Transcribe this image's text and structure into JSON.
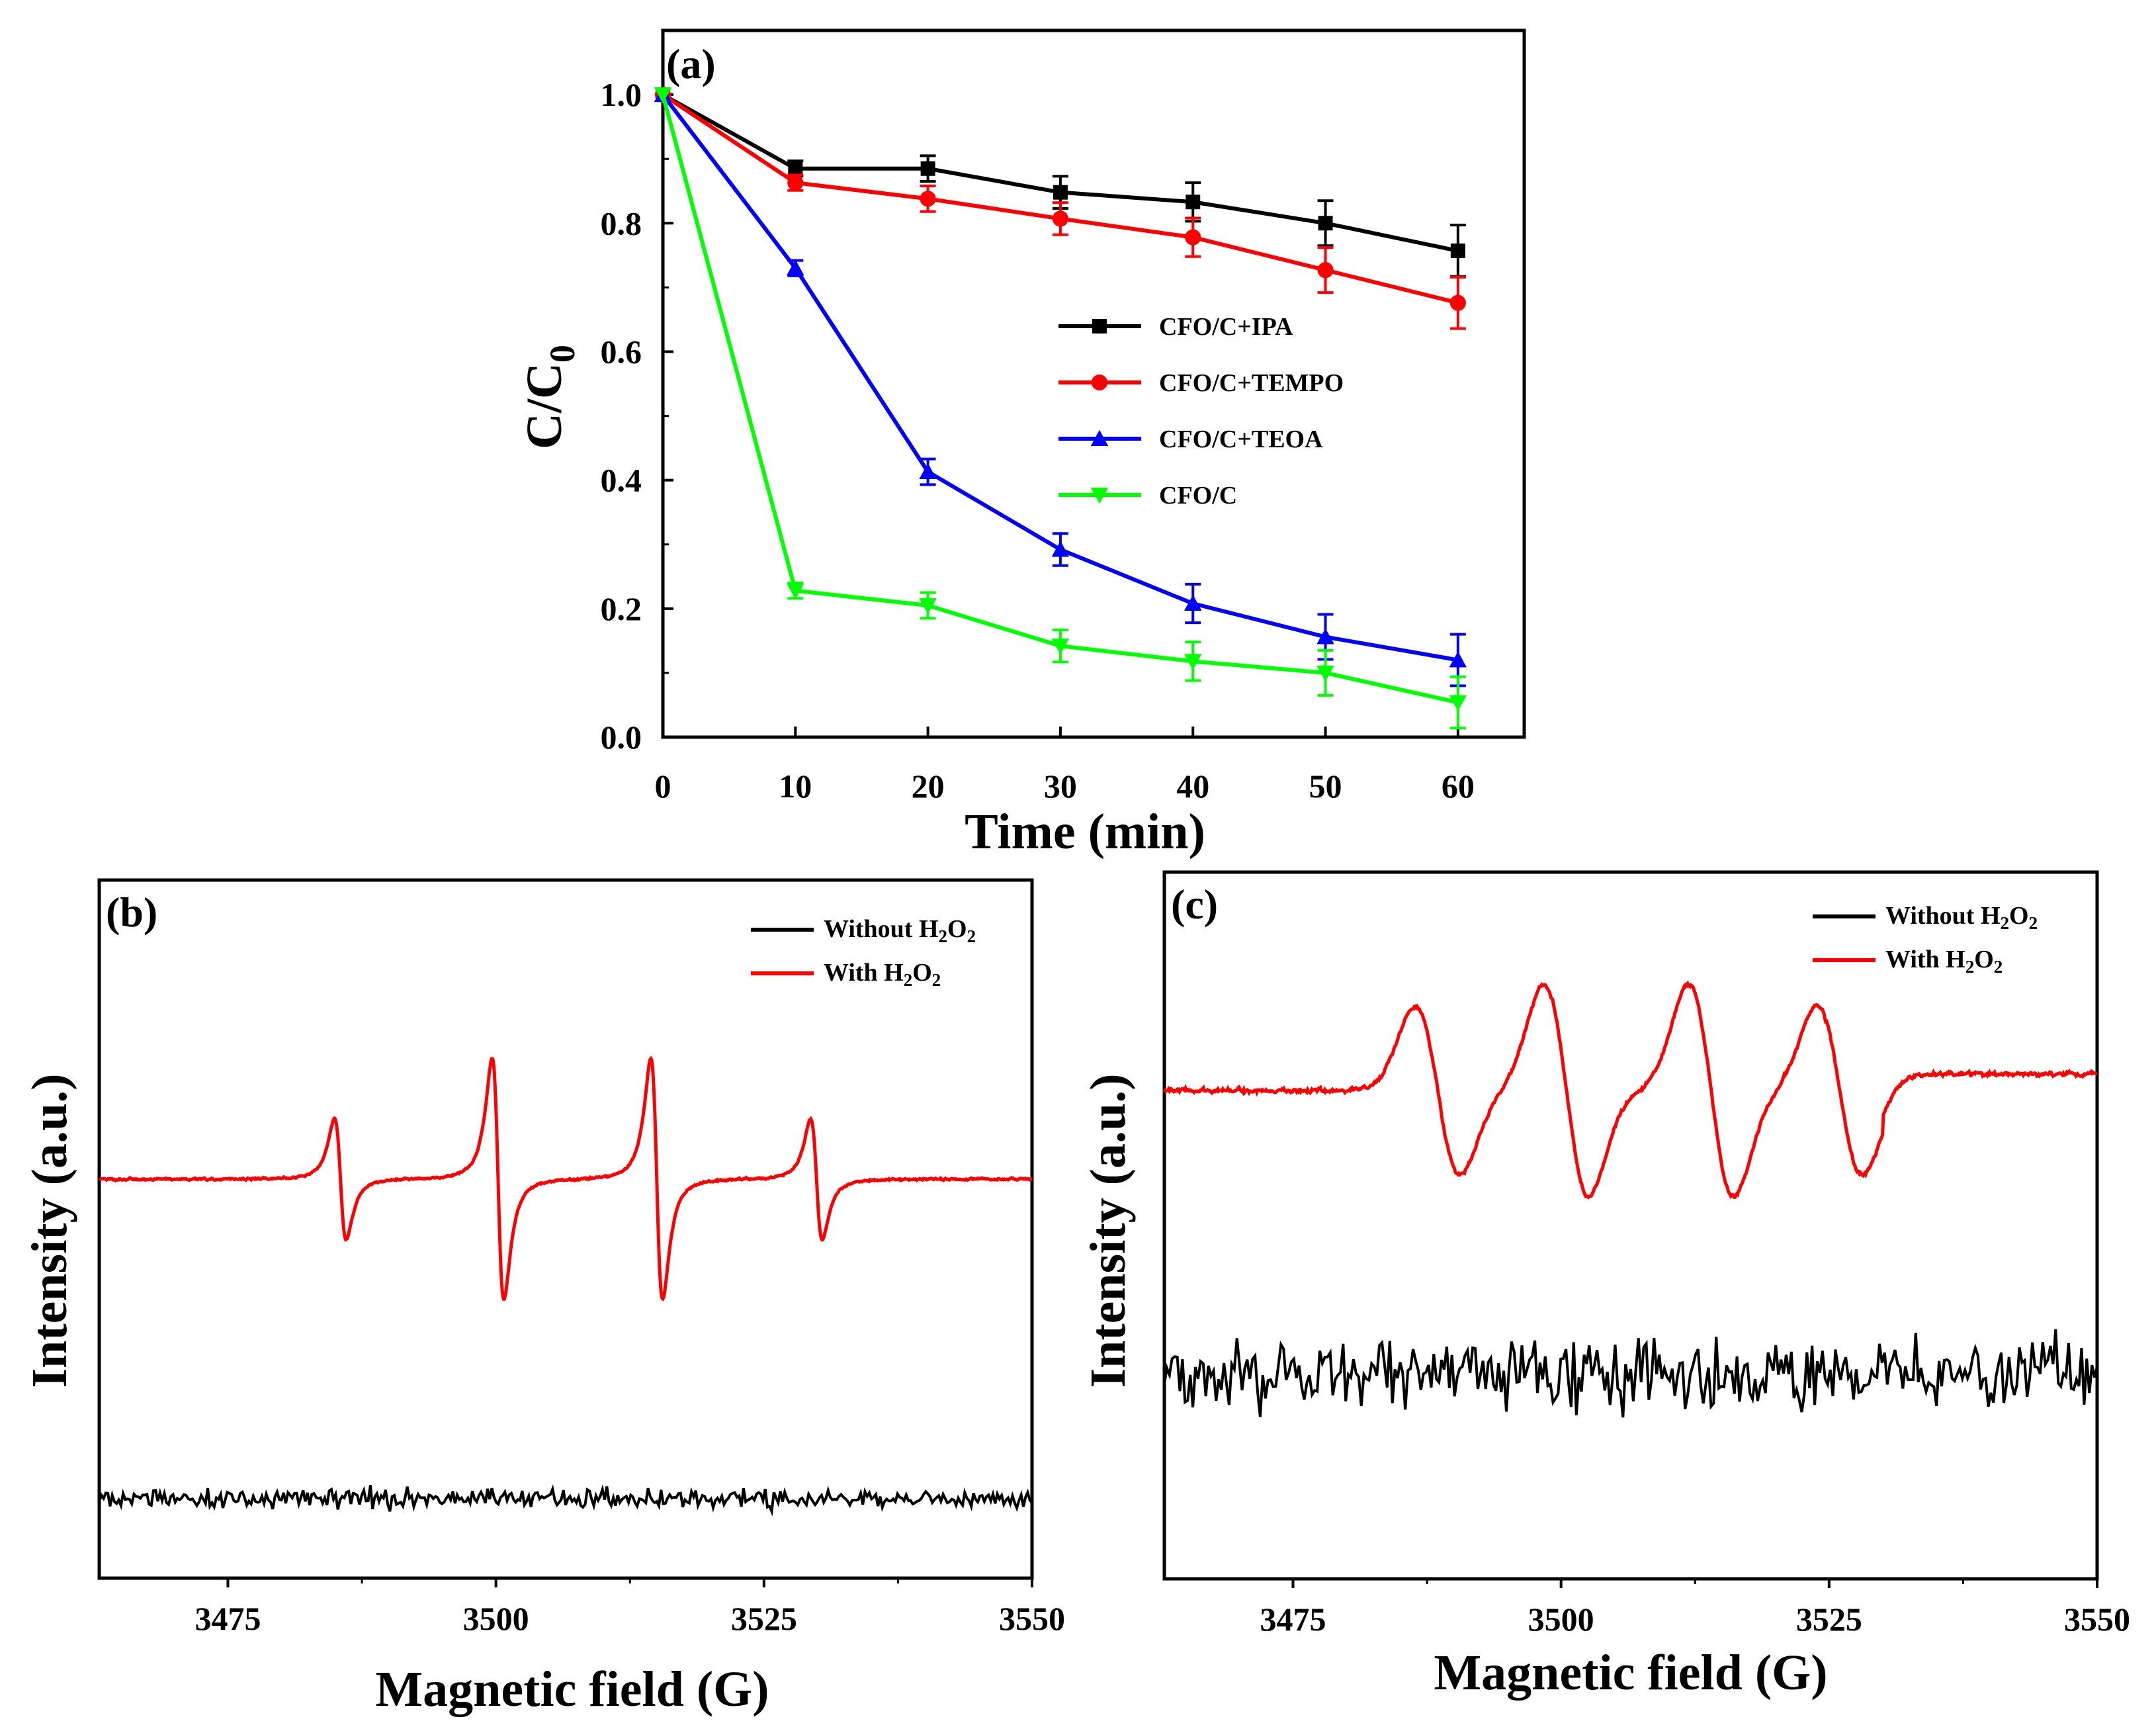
{
  "chart_data": [
    {
      "panel": "(a)",
      "type": "line",
      "xlabel": "Time (min)",
      "ylabel": "C/C",
      "ylabel_sub": "0",
      "xlim": [
        0,
        65
      ],
      "ylim": [
        0,
        1.1
      ],
      "xticks": [
        0,
        10,
        20,
        30,
        40,
        50,
        60
      ],
      "yticks": [
        "0.0",
        "0.2",
        "0.4",
        "0.6",
        "0.8",
        "1.0"
      ],
      "x": [
        0,
        10,
        20,
        30,
        40,
        50,
        60
      ],
      "series": [
        {
          "name": "CFO/C+IPA",
          "color": "#000000",
          "marker": "square",
          "values": [
            1.0,
            0.885,
            0.885,
            0.848,
            0.833,
            0.8,
            0.757
          ],
          "errors": [
            0.0,
            0.012,
            0.02,
            0.025,
            0.03,
            0.035,
            0.04
          ]
        },
        {
          "name": "CFO/C+TEMPO",
          "color": "#ff0000",
          "marker": "circle",
          "values": [
            1.0,
            0.863,
            0.838,
            0.807,
            0.778,
            0.727,
            0.676
          ],
          "errors": [
            0.0,
            0.012,
            0.02,
            0.025,
            0.03,
            0.035,
            0.04
          ]
        },
        {
          "name": "CFO/C+TEOA",
          "color": "#0000ff",
          "marker": "triangle-up",
          "values": [
            1.0,
            0.73,
            0.413,
            0.292,
            0.208,
            0.156,
            0.12
          ],
          "errors": [
            0.0,
            0.012,
            0.02,
            0.025,
            0.03,
            0.035,
            0.04
          ]
        },
        {
          "name": "CFO/C",
          "color": "#00ff00",
          "marker": "triangle-down",
          "values": [
            1.0,
            0.228,
            0.205,
            0.142,
            0.118,
            0.1,
            0.054
          ],
          "errors": [
            0.0,
            0.012,
            0.02,
            0.025,
            0.03,
            0.035,
            0.04
          ]
        }
      ]
    },
    {
      "panel": "(b)",
      "type": "line",
      "xlabel": "Magnetic field (G)",
      "ylabel": "Intensity (a.u.)",
      "xlim": [
        3463,
        3550
      ],
      "xticks": [
        3475,
        3500,
        3525,
        3550
      ],
      "peaks_G": [
        3485.5,
        3500.2,
        3515.0,
        3529.9
      ],
      "peak_amplitudes": [
        0.5,
        1.0,
        1.0,
        0.5
      ],
      "series": [
        {
          "name": "Without H",
          "sub1": "2",
          "mid": "O",
          "sub2": "2",
          "color": "#000000"
        },
        {
          "name": "With H",
          "sub1": "2",
          "mid": "O",
          "sub2": "2",
          "color": "#ff0000"
        }
      ]
    },
    {
      "panel": "(c)",
      "type": "line",
      "xlabel": "Magnetic field (G)",
      "ylabel": "Intensity (a.u.)",
      "xlim": [
        3463,
        3550
      ],
      "xticks": [
        3475,
        3500,
        3525,
        3550
      ],
      "peaks_G": [
        3488.5,
        3500.5,
        3514.0,
        3526.0
      ],
      "peak_amplitudes": [
        0.8,
        1.0,
        1.0,
        0.8
      ],
      "series": [
        {
          "name": "Without H",
          "sub1": "2",
          "mid": "O",
          "sub2": "2",
          "color": "#000000"
        },
        {
          "name": "With H",
          "sub1": "2",
          "mid": "O",
          "sub2": "2",
          "color": "#ff0000"
        }
      ]
    }
  ]
}
